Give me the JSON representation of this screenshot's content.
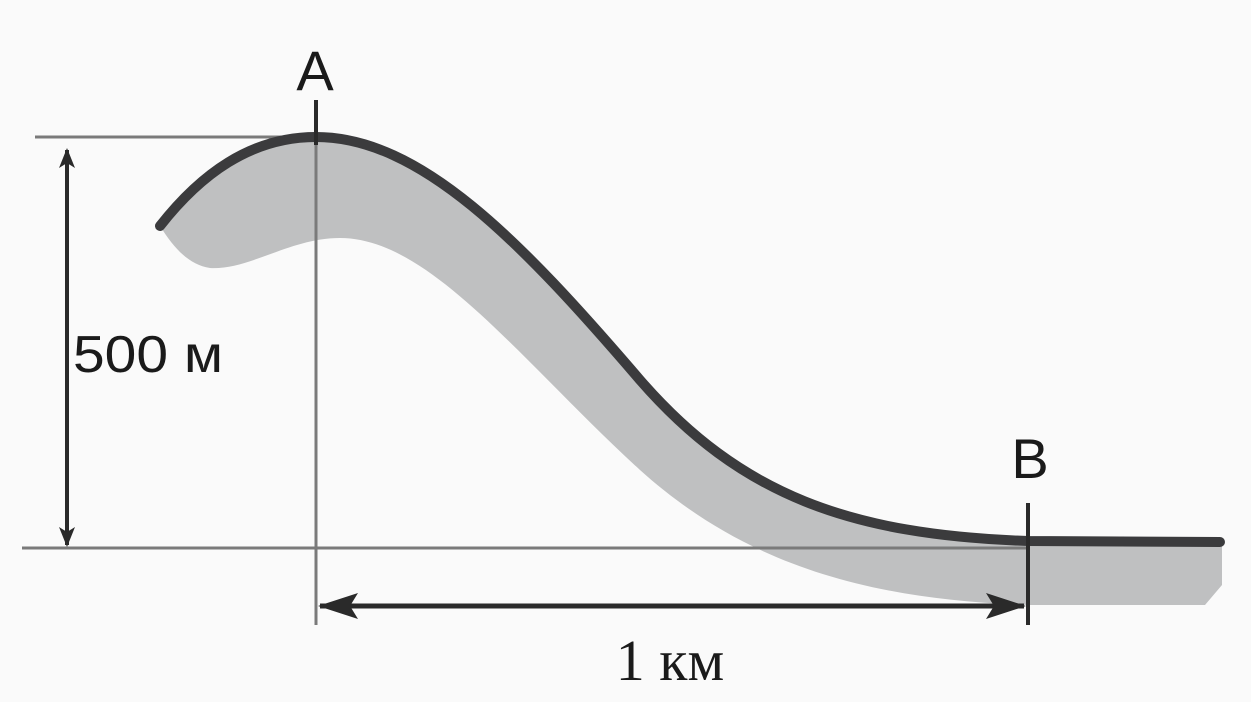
{
  "labels": {
    "point_a": "A",
    "point_b": "B",
    "height": "500 м",
    "distance": "1 км"
  }
}
